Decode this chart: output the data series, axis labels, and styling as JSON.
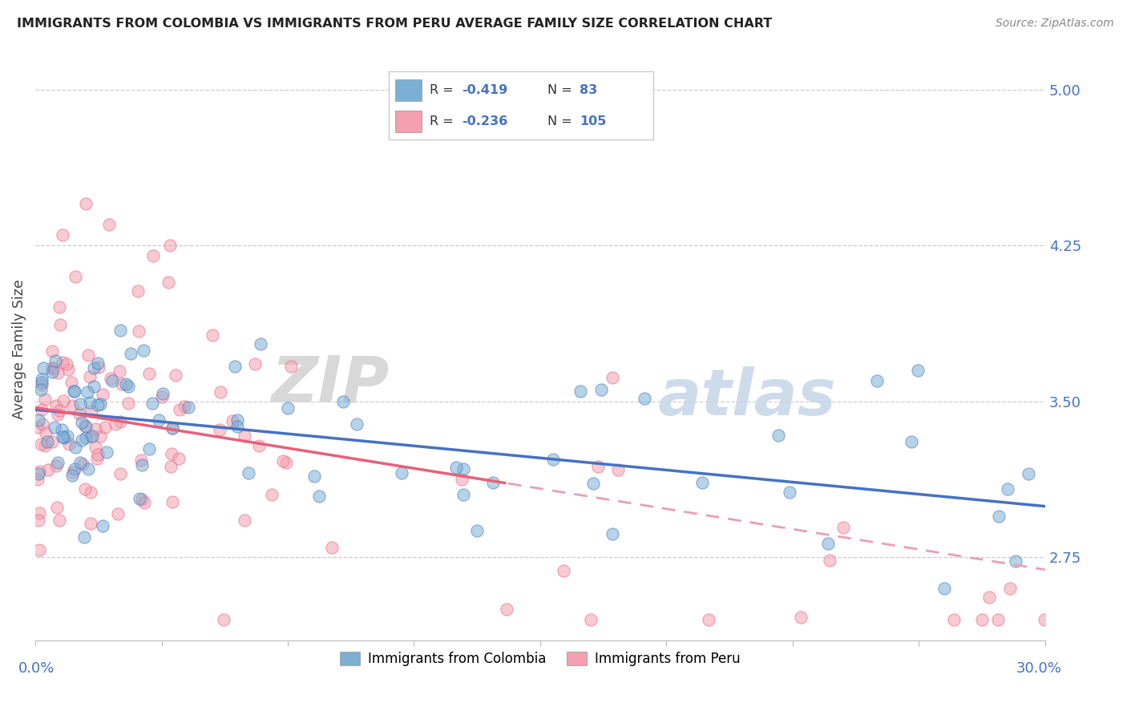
{
  "title": "IMMIGRANTS FROM COLOMBIA VS IMMIGRANTS FROM PERU AVERAGE FAMILY SIZE CORRELATION CHART",
  "source": "Source: ZipAtlas.com",
  "ylabel": "Average Family Size",
  "y_ticks": [
    2.75,
    3.5,
    4.25,
    5.0
  ],
  "x_range": [
    0.0,
    30.0
  ],
  "y_range": [
    2.35,
    5.15
  ],
  "colombia_color": "#7bafd4",
  "peru_color": "#f4a0b0",
  "colombia_line_color": "#4472c4",
  "peru_line_color": "#e8607a",
  "peru_line_color_dashed": "#e8a0b4",
  "colombia_R": -0.419,
  "colombia_N": 83,
  "peru_R": -0.236,
  "peru_N": 105,
  "colombia_label": "Immigrants from Colombia",
  "peru_label": "Immigrants from Peru",
  "colombia_slope": -0.0155,
  "colombia_intercept": 3.46,
  "peru_slope": -0.026,
  "peru_intercept": 3.47
}
